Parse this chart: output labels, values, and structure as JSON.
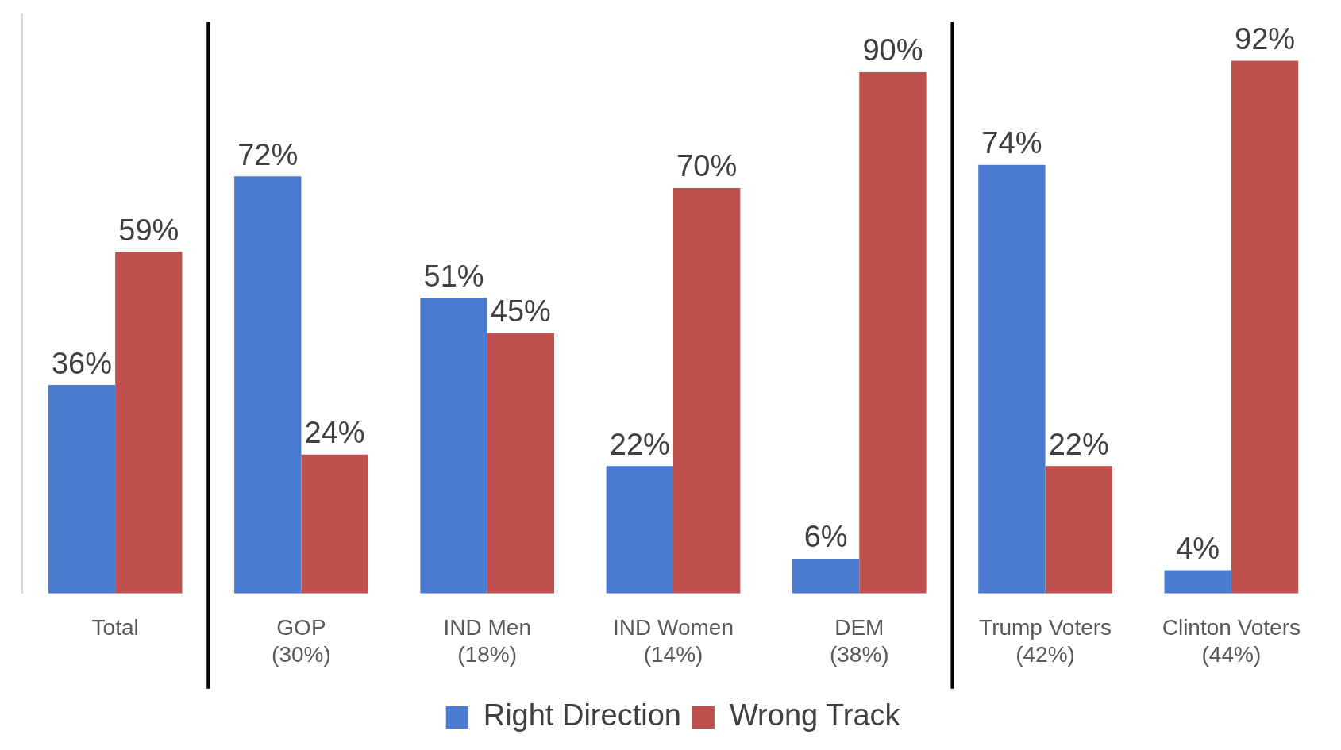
{
  "chart_data": {
    "type": "bar",
    "categories": [
      "Total",
      "GOP\n(30%)",
      "IND Men\n(18%)",
      "IND Women\n(14%)",
      "DEM\n(38%)",
      "Trump Voters\n(42%)",
      "Clinton Voters\n(44%)"
    ],
    "series": [
      {
        "name": "Right Direction",
        "color": "#4a7bd0",
        "values": [
          36,
          72,
          51,
          22,
          6,
          74,
          4
        ],
        "value_labels": [
          "36%",
          "72%",
          "51%",
          "22%",
          "6%",
          "74%",
          "4%"
        ]
      },
      {
        "name": "Wrong Track",
        "color": "#c0504d",
        "values": [
          59,
          24,
          45,
          70,
          90,
          22,
          92
        ],
        "value_labels": [
          "59%",
          "24%",
          "45%",
          "70%",
          "90%",
          "22%",
          "92%"
        ]
      }
    ],
    "ylim": [
      0,
      100
    ],
    "tick_labels": "x",
    "legend": "bottom",
    "grid": false
  }
}
